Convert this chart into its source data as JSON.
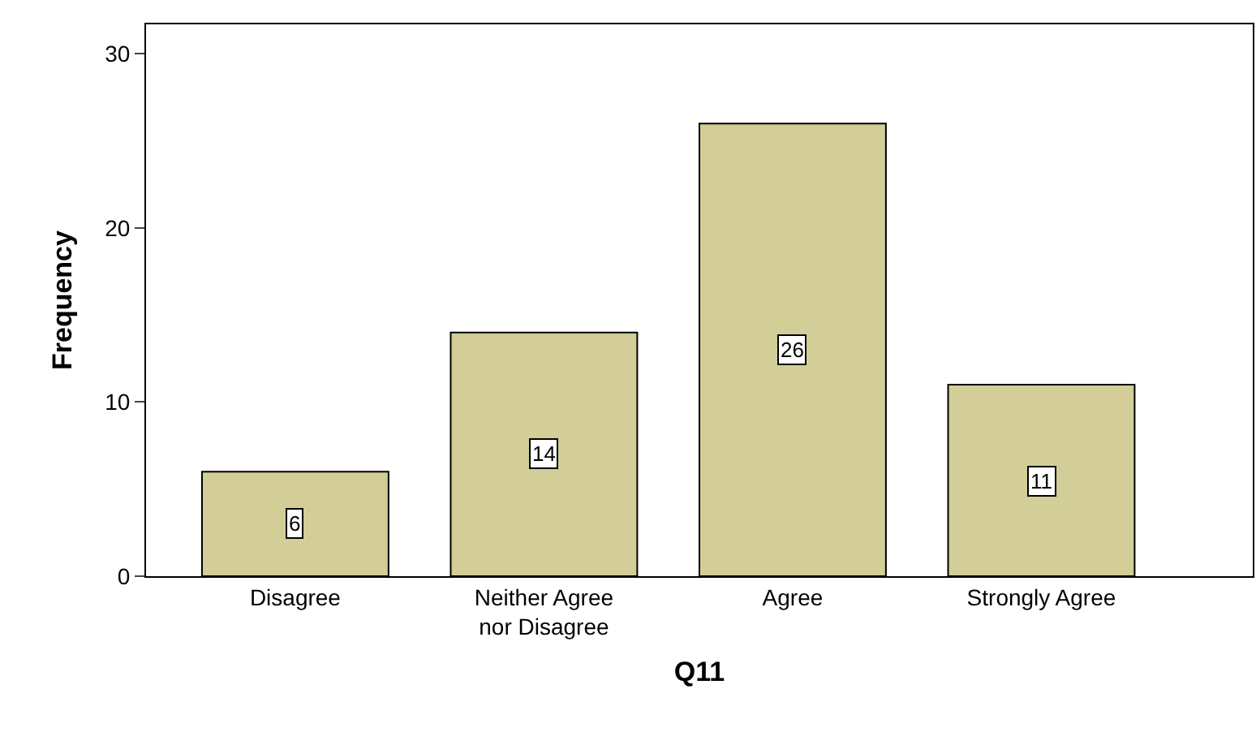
{
  "chart_data": {
    "type": "bar",
    "xlabel": "Q11",
    "ylabel": "Frequency",
    "categories": [
      "Disagree",
      "Neither Agree nor Disagree",
      "Agree",
      "Strongly Agree"
    ],
    "values": [
      6,
      14,
      26,
      11
    ],
    "color": "#d3ce97",
    "ylim": [
      0,
      31.7
    ],
    "yticks": [
      0,
      10,
      20,
      30
    ],
    "data_labels": true
  }
}
